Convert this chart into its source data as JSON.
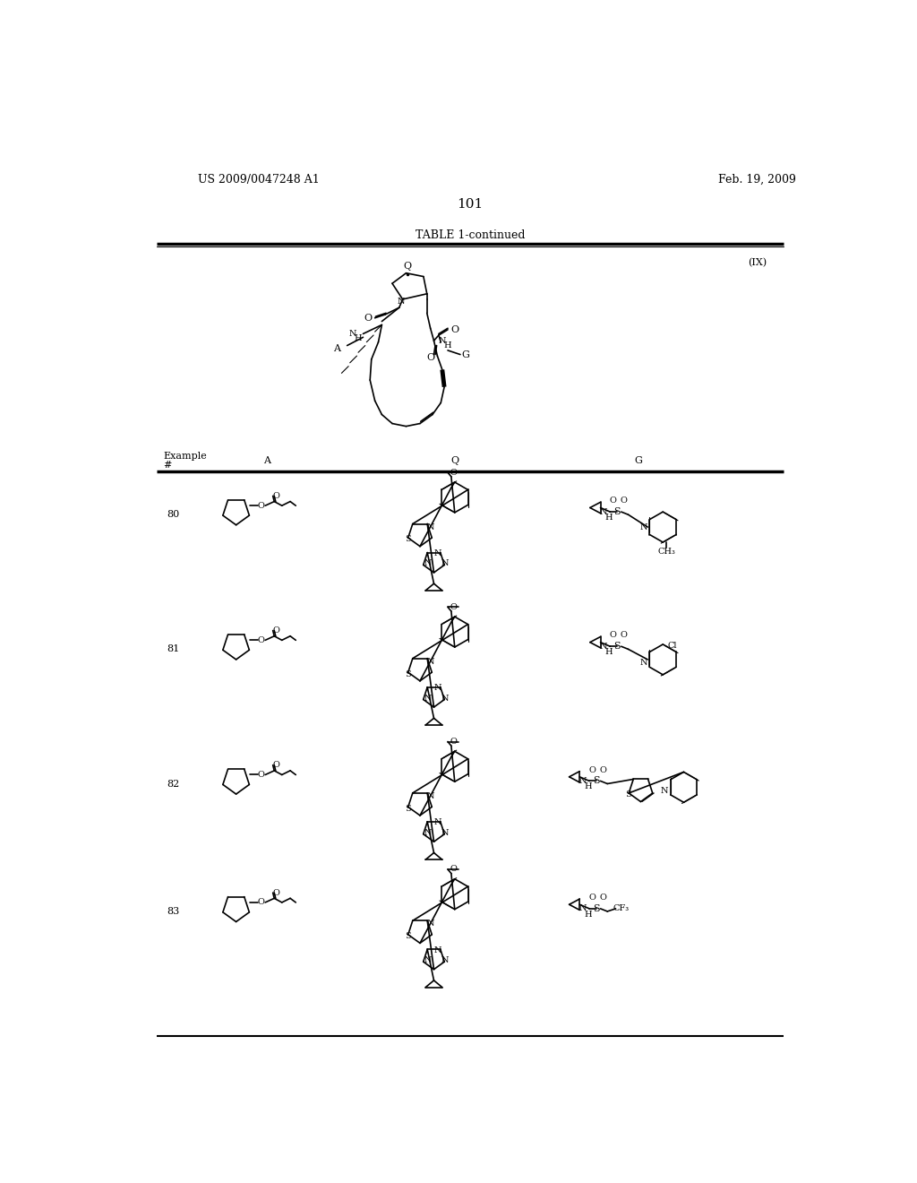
{
  "page_number": "101",
  "left_header": "US 2009/0047248 A1",
  "right_header": "Feb. 19, 2009",
  "table_title": "TABLE 1-continued",
  "formula_label": "(IX)",
  "background": "#ffffff",
  "text_color": "#000000"
}
